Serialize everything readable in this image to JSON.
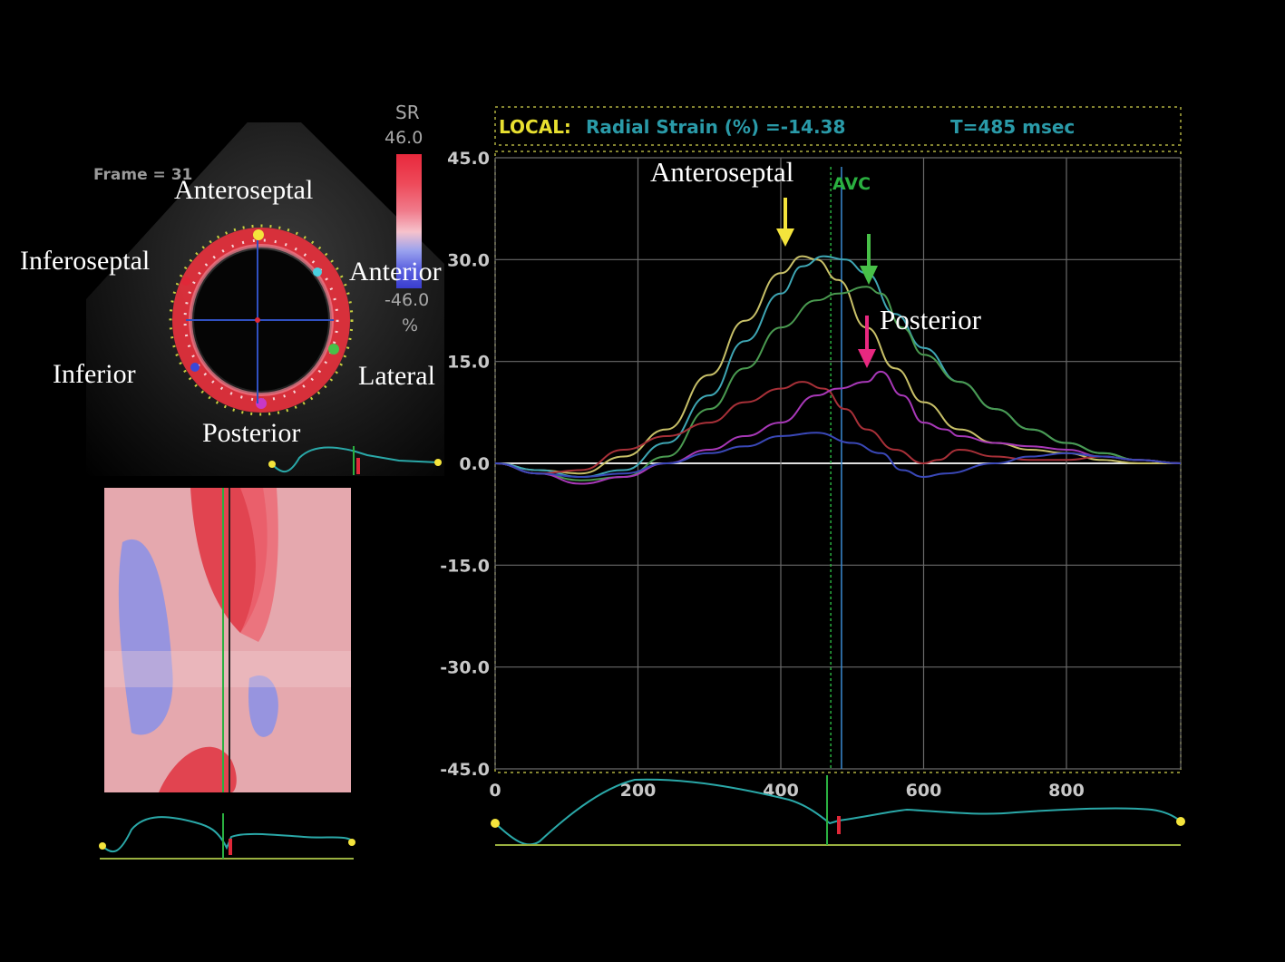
{
  "echo": {
    "frame_text": "Frame = 31",
    "segments": {
      "anteroseptal": "Anteroseptal",
      "inferoseptal": "Inferoseptal",
      "anterior": "Anterior",
      "inferior": "Inferior",
      "lateral": "Lateral",
      "posterior": "Posterior"
    },
    "scale": {
      "title": "SR",
      "max": "46.0",
      "min": "-46.0",
      "unit": "%"
    }
  },
  "colors": {
    "yellow_series": "#c8c068",
    "cyan_series": "#3ea6b4",
    "green_series": "#4a9a50",
    "red_series": "#a83038",
    "magenta_series": "#a838b8",
    "blue_series": "#3a48b8",
    "avc_marker": "#2ab040",
    "time_cursor": "#3a8ad0",
    "yellow_arrow": "#f4e43c",
    "green_arrow": "#48c048",
    "pink_arrow": "#e82880"
  },
  "chart_data": {
    "type": "line",
    "header": {
      "local": "LOCAL:",
      "measure": "Radial Strain (%) =-14.38",
      "time": "T=485 msec"
    },
    "xlim": [
      0,
      960
    ],
    "ylim": [
      -45,
      45
    ],
    "x_ticks": [
      "0",
      "200",
      "400",
      "600",
      "800"
    ],
    "y_ticks": [
      "45.0",
      "30.0",
      "15.0",
      "0.0",
      "-15.0",
      "-30.0",
      "-45.0"
    ],
    "x_tick_values": [
      0,
      200,
      400,
      600,
      800
    ],
    "y_tick_values": [
      45,
      30,
      15,
      0,
      -15,
      -30,
      -45
    ],
    "avc": {
      "label": "AVC",
      "x": 470
    },
    "time_cursor": 485,
    "annotations": [
      {
        "label": "Anteroseptal",
        "series": "yellow"
      },
      {
        "label": "Posterior",
        "series": "magenta"
      }
    ],
    "series": [
      {
        "key": "yellow",
        "x": [
          0,
          60,
          120,
          180,
          240,
          300,
          350,
          400,
          430,
          450,
          480,
          520,
          560,
          600,
          650,
          700,
          750,
          800,
          850,
          900,
          960
        ],
        "values": [
          0,
          -1,
          -1.5,
          1,
          5,
          13,
          21,
          28,
          30.5,
          30,
          27,
          20,
          14,
          9,
          5,
          3,
          2,
          1.5,
          0.5,
          0,
          0
        ]
      },
      {
        "key": "cyan",
        "x": [
          0,
          60,
          120,
          180,
          240,
          300,
          350,
          400,
          430,
          460,
          490,
          520,
          560,
          600,
          650,
          700,
          750,
          800,
          850,
          900,
          960
        ],
        "values": [
          0,
          -1,
          -2,
          -1,
          3,
          10,
          18,
          25,
          29,
          30.5,
          30,
          28,
          22,
          17,
          12,
          8,
          5,
          3,
          1.5,
          0.5,
          0
        ]
      },
      {
        "key": "green",
        "x": [
          0,
          60,
          120,
          180,
          240,
          300,
          350,
          400,
          450,
          480,
          520,
          540,
          570,
          600,
          650,
          700,
          750,
          800,
          850,
          900,
          960
        ],
        "values": [
          0,
          -1.5,
          -2.5,
          -2,
          1,
          8,
          14,
          20,
          24,
          25,
          26,
          25,
          20,
          16,
          12,
          8,
          5,
          3,
          1.5,
          0.5,
          0
        ]
      },
      {
        "key": "red",
        "x": [
          0,
          60,
          120,
          180,
          240,
          300,
          350,
          400,
          430,
          460,
          490,
          520,
          560,
          600,
          620,
          650,
          700,
          750,
          800,
          850,
          900,
          960
        ],
        "values": [
          0,
          -1.5,
          -1,
          2,
          4,
          6,
          9,
          11,
          12,
          11,
          8,
          5,
          2,
          0,
          0.5,
          2,
          1,
          0.5,
          0.5,
          1,
          0.5,
          0
        ]
      },
      {
        "key": "magenta",
        "x": [
          0,
          60,
          120,
          180,
          240,
          300,
          350,
          400,
          450,
          480,
          520,
          540,
          570,
          600,
          630,
          650,
          700,
          750,
          800,
          850,
          900,
          960
        ],
        "values": [
          0,
          -1.5,
          -3,
          -2,
          0,
          2,
          4,
          6,
          10,
          11,
          12,
          13.5,
          10,
          6,
          5,
          4,
          3,
          2.5,
          2,
          1,
          0.5,
          0
        ]
      },
      {
        "key": "blue",
        "x": [
          0,
          60,
          120,
          180,
          240,
          300,
          350,
          400,
          450,
          500,
          540,
          570,
          600,
          630,
          700,
          750,
          800,
          850,
          900,
          960
        ],
        "values": [
          0,
          -1.5,
          -2,
          -1.5,
          0,
          1.5,
          2.5,
          4,
          4.5,
          3,
          1.5,
          -1,
          -2,
          -1.5,
          0,
          1,
          1.5,
          1,
          0.5,
          0
        ]
      }
    ]
  }
}
